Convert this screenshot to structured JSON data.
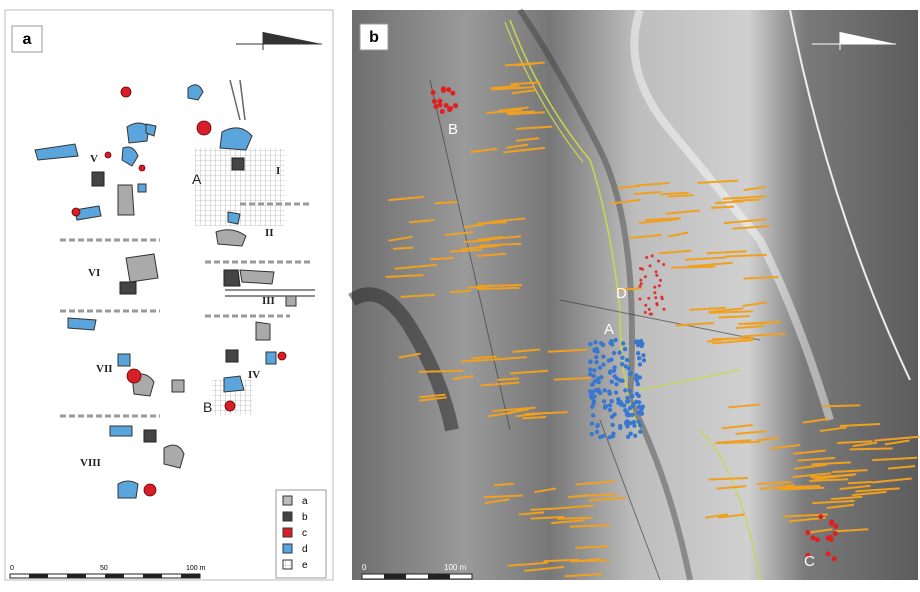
{
  "panel_a": {
    "label": "a",
    "areas": [
      "I",
      "II",
      "III",
      "IV",
      "V",
      "VI",
      "VII",
      "VIII"
    ],
    "sites": [
      "A",
      "B"
    ],
    "legend": [
      "a",
      "b",
      "c",
      "d",
      "e"
    ],
    "scale": [
      "0",
      "50",
      "100 m"
    ]
  },
  "panel_b": {
    "label": "b",
    "sites": [
      "A",
      "B",
      "C",
      "D"
    ],
    "scale": [
      "0",
      "100 m"
    ]
  }
}
